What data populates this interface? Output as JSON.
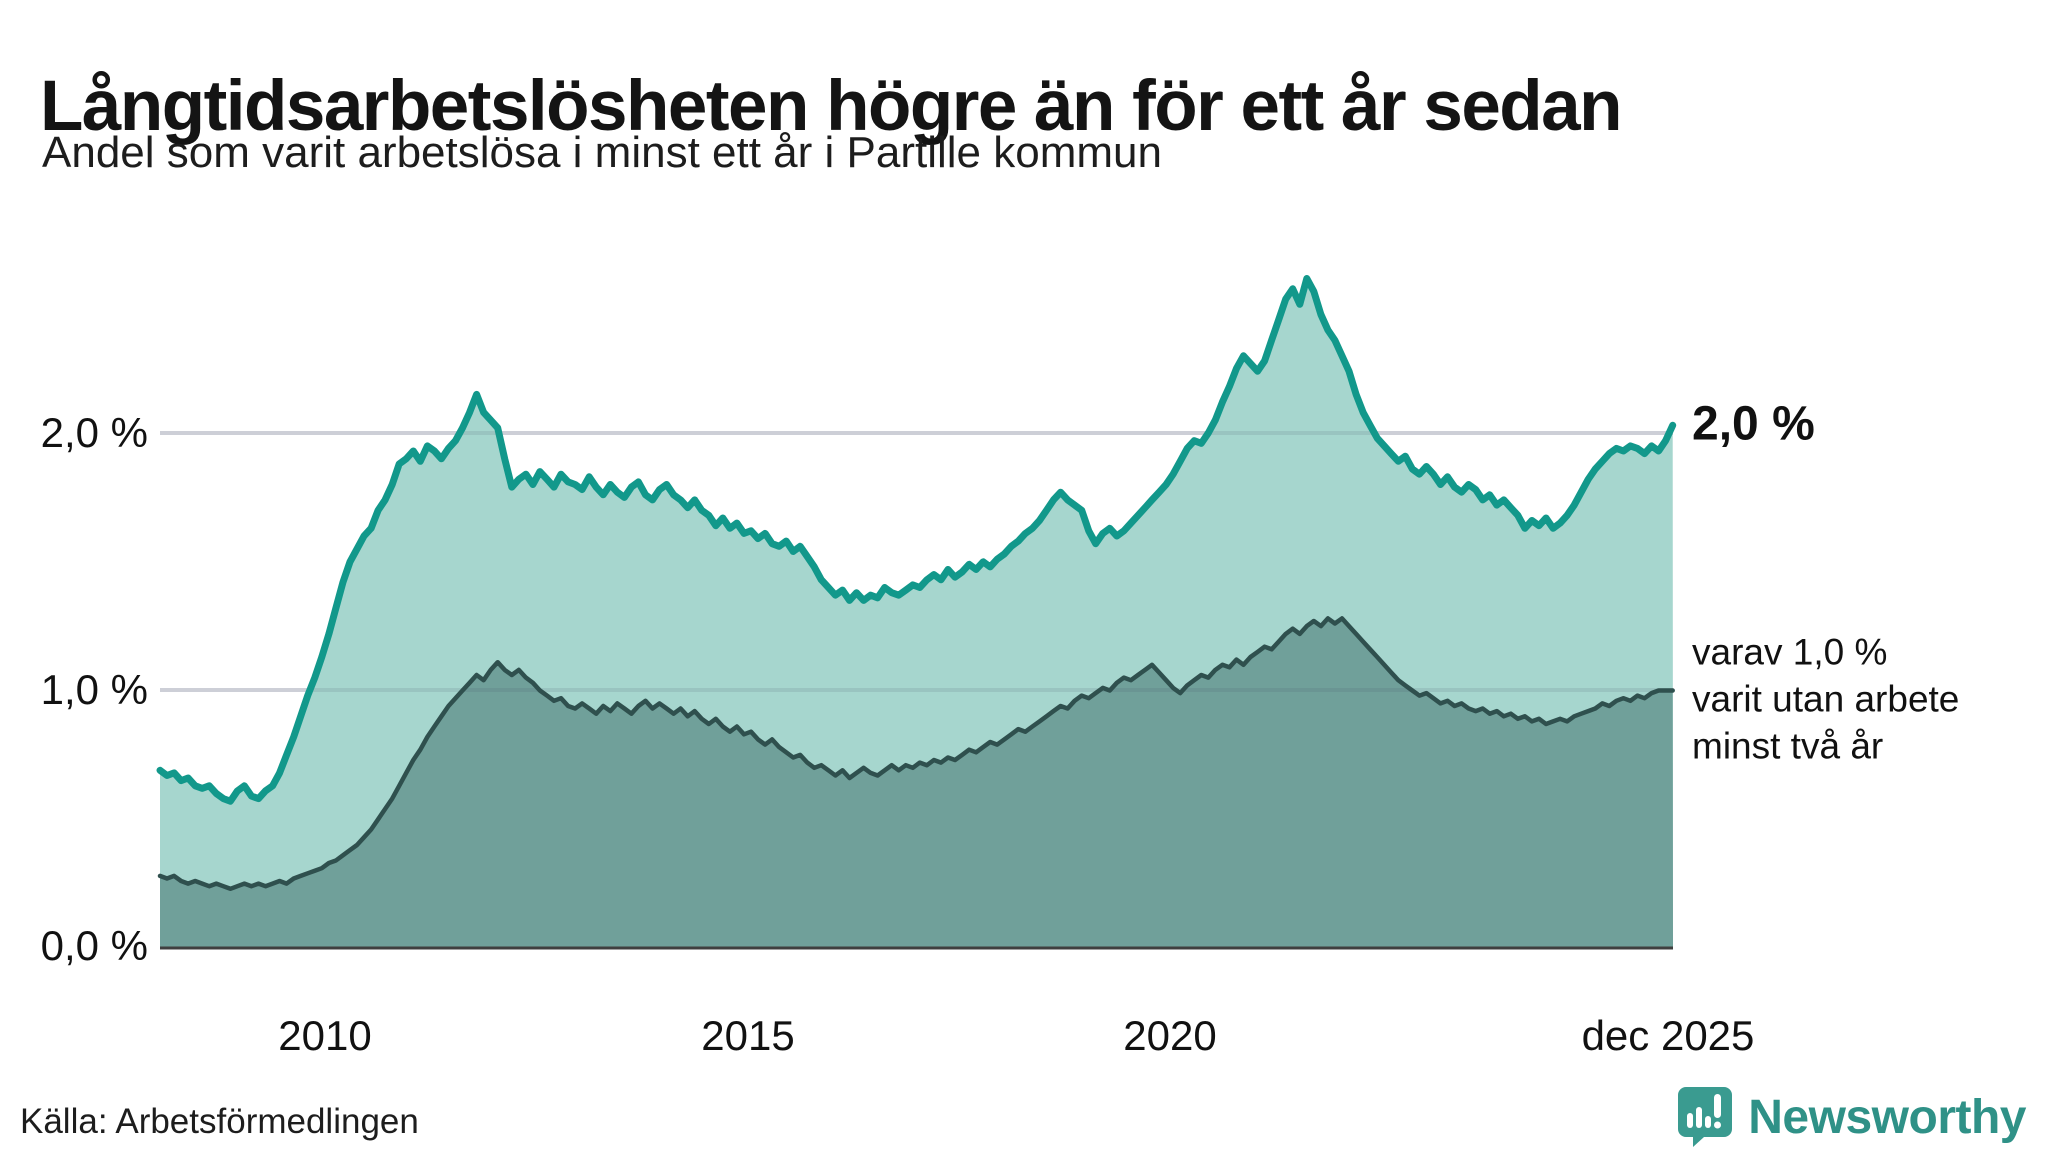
{
  "header": {
    "title": "Långtidsarbetslösheten högre än för ett år sedan",
    "subtitle": "Andel som varit arbetslösa i minst ett år i Partille kommun"
  },
  "chart_data": {
    "type": "area",
    "title": "Långtidsarbetslösheten högre än för ett år sedan",
    "subtitle": "Andel som varit arbetslösa i minst ett år i Partille kommun",
    "unit": "%",
    "x_start": 2008.04,
    "x_step": 0.08333,
    "x_range": [
      2008.04,
      2025.96
    ],
    "ylim": [
      0,
      2.85
    ],
    "grid": "horizontal",
    "legend_position": "right-annotations",
    "y_ticks": [
      {
        "label": "0,0 %",
        "value": 0
      },
      {
        "label": "1,0 %",
        "value": 1
      },
      {
        "label": "2,0 %",
        "value": 2
      }
    ],
    "x_ticks": [
      {
        "label": "2010",
        "year": 2010
      },
      {
        "label": "2015",
        "year": 2015
      },
      {
        "label": "2020",
        "year": 2020
      },
      {
        "label": "dec 2025",
        "year": 2025.96
      }
    ],
    "series": [
      {
        "name": "Andel arbetslösa minst ett år",
        "line_color": "#12988b",
        "fill_color": "#a6d6ce",
        "line_width": 7,
        "end_value": 2.0,
        "values": [
          0.69,
          0.67,
          0.68,
          0.65,
          0.66,
          0.63,
          0.62,
          0.63,
          0.6,
          0.58,
          0.57,
          0.61,
          0.63,
          0.59,
          0.58,
          0.61,
          0.63,
          0.68,
          0.75,
          0.82,
          0.9,
          0.98,
          1.05,
          1.13,
          1.22,
          1.32,
          1.42,
          1.5,
          1.55,
          1.6,
          1.63,
          1.7,
          1.74,
          1.8,
          1.88,
          1.9,
          1.93,
          1.89,
          1.95,
          1.93,
          1.9,
          1.94,
          1.97,
          2.02,
          2.08,
          2.15,
          2.08,
          2.05,
          2.02,
          1.9,
          1.79,
          1.82,
          1.84,
          1.8,
          1.85,
          1.82,
          1.79,
          1.84,
          1.81,
          1.8,
          1.78,
          1.83,
          1.79,
          1.76,
          1.8,
          1.77,
          1.75,
          1.79,
          1.81,
          1.76,
          1.74,
          1.78,
          1.8,
          1.76,
          1.74,
          1.71,
          1.74,
          1.7,
          1.68,
          1.64,
          1.67,
          1.63,
          1.65,
          1.61,
          1.62,
          1.59,
          1.61,
          1.57,
          1.56,
          1.58,
          1.54,
          1.56,
          1.52,
          1.48,
          1.43,
          1.4,
          1.37,
          1.39,
          1.35,
          1.38,
          1.35,
          1.37,
          1.36,
          1.4,
          1.38,
          1.37,
          1.39,
          1.41,
          1.4,
          1.43,
          1.45,
          1.43,
          1.47,
          1.44,
          1.46,
          1.49,
          1.47,
          1.5,
          1.48,
          1.51,
          1.53,
          1.56,
          1.58,
          1.61,
          1.63,
          1.66,
          1.7,
          1.74,
          1.77,
          1.74,
          1.72,
          1.7,
          1.62,
          1.57,
          1.61,
          1.63,
          1.6,
          1.62,
          1.65,
          1.68,
          1.71,
          1.74,
          1.77,
          1.8,
          1.84,
          1.89,
          1.94,
          1.97,
          1.96,
          2.0,
          2.05,
          2.12,
          2.18,
          2.25,
          2.3,
          2.27,
          2.24,
          2.28,
          2.36,
          2.44,
          2.52,
          2.56,
          2.5,
          2.6,
          2.55,
          2.46,
          2.4,
          2.36,
          2.3,
          2.24,
          2.15,
          2.08,
          2.03,
          1.98,
          1.95,
          1.92,
          1.89,
          1.91,
          1.86,
          1.84,
          1.87,
          1.84,
          1.8,
          1.83,
          1.79,
          1.77,
          1.8,
          1.78,
          1.74,
          1.76,
          1.72,
          1.74,
          1.71,
          1.68,
          1.63,
          1.66,
          1.64,
          1.67,
          1.63,
          1.65,
          1.68,
          1.72,
          1.77,
          1.82,
          1.86,
          1.89,
          1.92,
          1.94,
          1.93,
          1.95,
          1.94,
          1.92,
          1.95,
          1.93,
          1.97,
          2.03
        ]
      },
      {
        "name": "Varav utan arbete minst två år",
        "line_color": "#2f504e",
        "fill_color": "#70a09a",
        "line_width": 4.5,
        "end_value": 1.0,
        "values": [
          0.28,
          0.27,
          0.28,
          0.26,
          0.25,
          0.26,
          0.25,
          0.24,
          0.25,
          0.24,
          0.23,
          0.24,
          0.25,
          0.24,
          0.25,
          0.24,
          0.25,
          0.26,
          0.25,
          0.27,
          0.28,
          0.29,
          0.3,
          0.31,
          0.33,
          0.34,
          0.36,
          0.38,
          0.4,
          0.43,
          0.46,
          0.5,
          0.54,
          0.58,
          0.63,
          0.68,
          0.73,
          0.77,
          0.82,
          0.86,
          0.9,
          0.94,
          0.97,
          1.0,
          1.03,
          1.06,
          1.04,
          1.08,
          1.11,
          1.08,
          1.06,
          1.08,
          1.05,
          1.03,
          1.0,
          0.98,
          0.96,
          0.97,
          0.94,
          0.93,
          0.95,
          0.93,
          0.91,
          0.94,
          0.92,
          0.95,
          0.93,
          0.91,
          0.94,
          0.96,
          0.93,
          0.95,
          0.93,
          0.91,
          0.93,
          0.9,
          0.92,
          0.89,
          0.87,
          0.89,
          0.86,
          0.84,
          0.86,
          0.83,
          0.84,
          0.81,
          0.79,
          0.81,
          0.78,
          0.76,
          0.74,
          0.75,
          0.72,
          0.7,
          0.71,
          0.69,
          0.67,
          0.69,
          0.66,
          0.68,
          0.7,
          0.68,
          0.67,
          0.69,
          0.71,
          0.69,
          0.71,
          0.7,
          0.72,
          0.71,
          0.73,
          0.72,
          0.74,
          0.73,
          0.75,
          0.77,
          0.76,
          0.78,
          0.8,
          0.79,
          0.81,
          0.83,
          0.85,
          0.84,
          0.86,
          0.88,
          0.9,
          0.92,
          0.94,
          0.93,
          0.96,
          0.98,
          0.97,
          0.99,
          1.01,
          1.0,
          1.03,
          1.05,
          1.04,
          1.06,
          1.08,
          1.1,
          1.07,
          1.04,
          1.01,
          0.99,
          1.02,
          1.04,
          1.06,
          1.05,
          1.08,
          1.1,
          1.09,
          1.12,
          1.1,
          1.13,
          1.15,
          1.17,
          1.16,
          1.19,
          1.22,
          1.24,
          1.22,
          1.25,
          1.27,
          1.25,
          1.28,
          1.26,
          1.28,
          1.25,
          1.22,
          1.19,
          1.16,
          1.13,
          1.1,
          1.07,
          1.04,
          1.02,
          1.0,
          0.98,
          0.99,
          0.97,
          0.95,
          0.96,
          0.94,
          0.95,
          0.93,
          0.92,
          0.93,
          0.91,
          0.92,
          0.9,
          0.91,
          0.89,
          0.9,
          0.88,
          0.89,
          0.87,
          0.88,
          0.89,
          0.88,
          0.9,
          0.91,
          0.92,
          0.93,
          0.95,
          0.94,
          0.96,
          0.97,
          0.96,
          0.98,
          0.97,
          0.99,
          1.0,
          1.0,
          1.0
        ]
      }
    ],
    "annotations": {
      "end_label": "2,0 %",
      "secondary_lines": [
        "varav 1,0 %",
        "varit utan arbete",
        "minst två år"
      ]
    }
  },
  "footer": {
    "source": "Källa: Arbetsförmedlingen",
    "brand": "Newsworthy"
  },
  "colors": {
    "series1_line": "#12988b",
    "series1_fill": "#a6d6ce",
    "series2_line": "#2f504e",
    "series2_fill": "#70a09a",
    "gridline": "#e2e3e8",
    "axis": "#3f3f3f",
    "text": "#141414",
    "brand_teal": "#2f9187"
  }
}
